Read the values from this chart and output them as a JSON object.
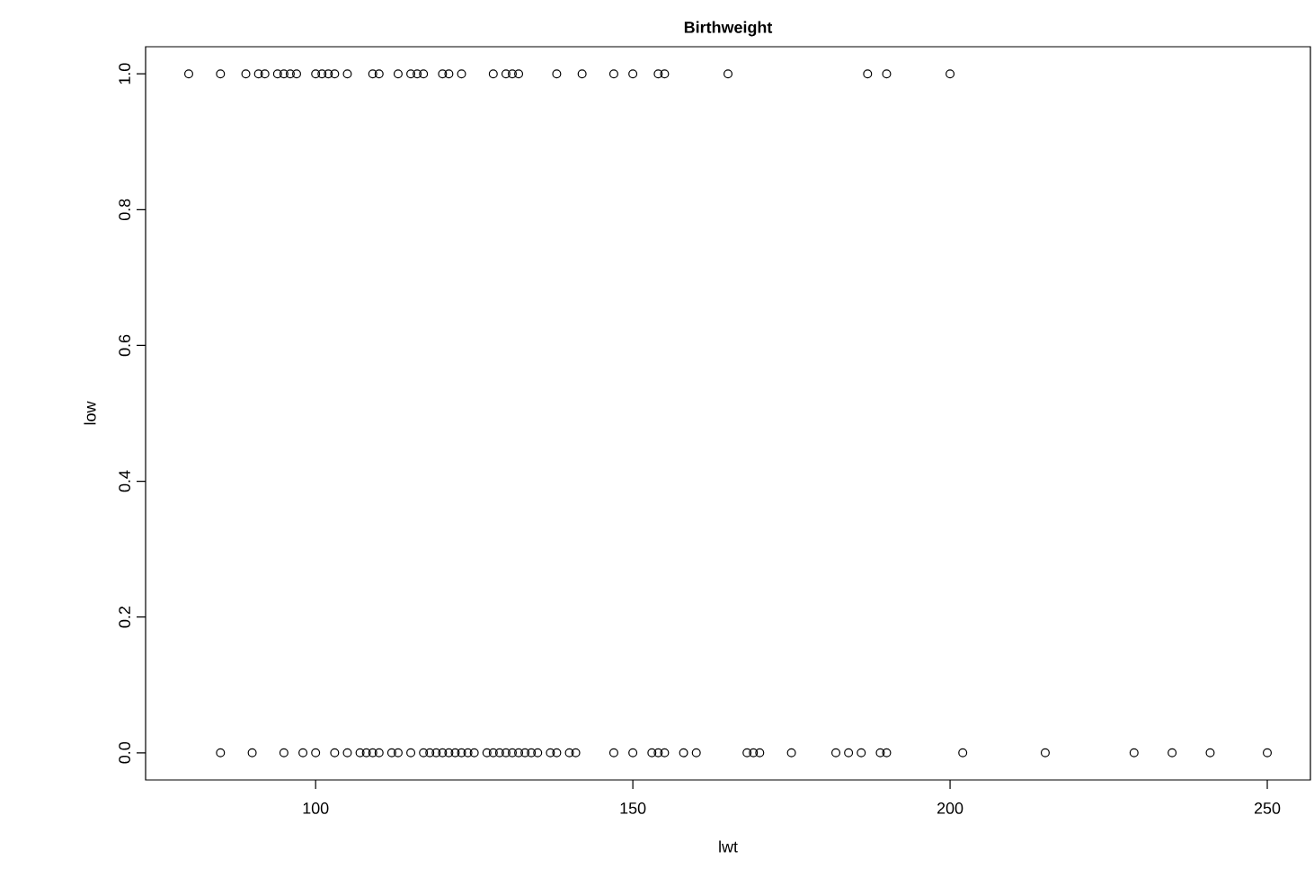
{
  "chart_data": {
    "type": "scatter",
    "title": "Birthweight",
    "xlabel": "lwt",
    "ylabel": "low",
    "marker": "circle",
    "series": [
      {
        "color": "#000000",
        "x": [
          80,
          85,
          89,
          91,
          92,
          94,
          95,
          96,
          97,
          100,
          101,
          102,
          103,
          105,
          109,
          110,
          113,
          115,
          116,
          117,
          120,
          121,
          123,
          128,
          130,
          131,
          132,
          138,
          142,
          147,
          150,
          154,
          155,
          165,
          187,
          190,
          200
        ],
        "values": [
          1,
          1,
          1,
          1,
          1,
          1,
          1,
          1,
          1,
          1,
          1,
          1,
          1,
          1,
          1,
          1,
          1,
          1,
          1,
          1,
          1,
          1,
          1,
          1,
          1,
          1,
          1,
          1,
          1,
          1,
          1,
          1,
          1,
          1,
          1,
          1,
          1
        ]
      },
      {
        "color": "#000000",
        "x": [
          85,
          90,
          95,
          98,
          100,
          103,
          105,
          107,
          108,
          109,
          110,
          112,
          113,
          115,
          117,
          118,
          119,
          120,
          121,
          122,
          123,
          124,
          125,
          127,
          128,
          129,
          130,
          131,
          132,
          133,
          134,
          135,
          137,
          138,
          140,
          141,
          147,
          150,
          153,
          154,
          155,
          158,
          160,
          168,
          169,
          170,
          175,
          182,
          184,
          186,
          189,
          190,
          202,
          215,
          229,
          235,
          241,
          250
        ],
        "values": [
          0,
          0,
          0,
          0,
          0,
          0,
          0,
          0,
          0,
          0,
          0,
          0,
          0,
          0,
          0,
          0,
          0,
          0,
          0,
          0,
          0,
          0,
          0,
          0,
          0,
          0,
          0,
          0,
          0,
          0,
          0,
          0,
          0,
          0,
          0,
          0,
          0,
          0,
          0,
          0,
          0,
          0,
          0,
          0,
          0,
          0,
          0,
          0,
          0,
          0,
          0,
          0,
          0,
          0,
          0,
          0,
          0,
          0
        ]
      }
    ],
    "xlim": [
      73.2,
      256.8
    ],
    "ylim": [
      -0.04,
      1.04
    ],
    "xticks": [
      100,
      150,
      200,
      250
    ],
    "yticks": [
      {
        "value": 0,
        "label": "0.0"
      },
      {
        "value": 0.2,
        "label": "0.2"
      },
      {
        "value": 0.4,
        "label": "0.4"
      },
      {
        "value": 0.6,
        "label": "0.6"
      },
      {
        "value": 0.8,
        "label": "0.8"
      },
      {
        "value": 1,
        "label": "1.0"
      }
    ]
  }
}
